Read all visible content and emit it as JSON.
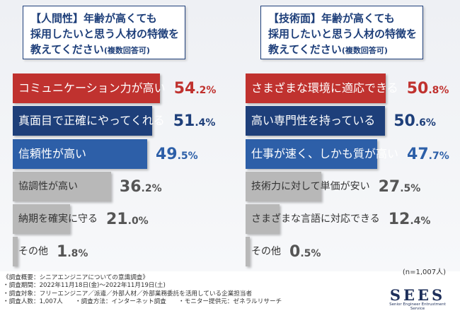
{
  "left": {
    "title_lines": [
      "【人間性】年齢が高くても",
      "採用したいと思う人材の特徴を"
    ],
    "title_last": "教えてください",
    "title_note": "(複数回答可)"
  },
  "right": {
    "title_lines": [
      "【技術面】年齢が高くても",
      "採用したいと思う人材の特徴を"
    ],
    "title_last": "教えてください",
    "title_note": "(複数回答可)"
  },
  "chart_data": [
    {
      "type": "bar",
      "categories": [
        "コミュニケーション力が高い",
        "真面目で正確にやってくれる",
        "信頼性が高い",
        "協調性が高い",
        "納期を確実に守る",
        "その他"
      ],
      "values": [
        54.2,
        51.4,
        49.5,
        36.2,
        21.0,
        1.8
      ],
      "unit": "%",
      "title": "【人間性】年齢が高くても採用したいと思う人材の特徴を教えてください(複数回答可)",
      "colors": [
        "#c0322f",
        "#1e3f7a",
        "#2d5fa8",
        "#b8b8b8",
        "#b8b8b8",
        "#b8b8b8"
      ],
      "text_colors": [
        "#ffffff",
        "#ffffff",
        "#ffffff",
        "#333333",
        "#333333",
        "#333333"
      ]
    },
    {
      "type": "bar",
      "categories": [
        "さまざまな環境に適応できる",
        "高い専門性を持っている",
        "仕事が速く、しかも質が高い",
        "技術力に対して単価が安い",
        "さまざまな言語に対応できる",
        "その他"
      ],
      "values": [
        50.8,
        50.6,
        47.7,
        27.5,
        12.4,
        0.5
      ],
      "unit": "%",
      "title": "【技術面】年齢が高くても採用したいと思う人材の特徴を教えてください(複数回答可)",
      "colors": [
        "#c0322f",
        "#1e3f7a",
        "#2d5fa8",
        "#b8b8b8",
        "#b8b8b8",
        "#b8b8b8"
      ],
      "text_colors": [
        "#ffffff",
        "#ffffff",
        "#ffffff",
        "#333333",
        "#333333",
        "#333333"
      ]
    }
  ],
  "n_note": "(n=1,007人)",
  "footer": [
    "《調査概要：シニアエンジニアについての意識調査》",
    "・調査期間：2022年11月18日(金)～2022年11月19日(土)",
    "・調査対象：フリーエンジニア／派遣／外部人材／外部業務委託を活用している企業担当者",
    "・調査人数：1,007人　　・調査方法：インターネット調査　　・モニター提供元：ゼネラルリサーチ"
  ],
  "logo": {
    "name": "SEES",
    "tagline": "Senior Engineer Entrustment Service"
  }
}
